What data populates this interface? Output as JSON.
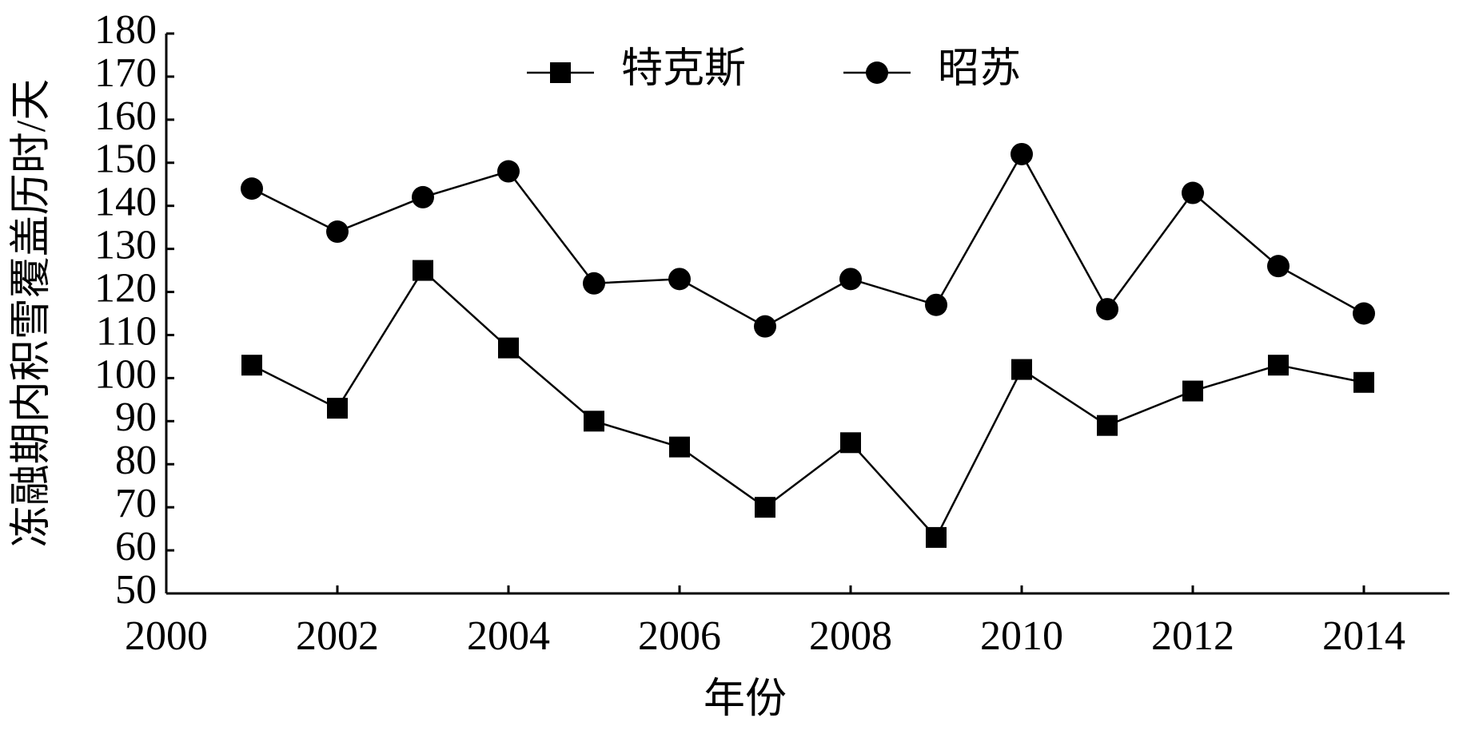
{
  "chart_data": {
    "type": "line",
    "x_label": "年份",
    "y_label": "冻融期内积雪覆盖历时/天",
    "x": [
      2001,
      2002,
      2003,
      2004,
      2005,
      2006,
      2007,
      2008,
      2009,
      2010,
      2011,
      2012,
      2013,
      2014
    ],
    "series": [
      {
        "name": "特克斯",
        "color": "#000000",
        "marker": "square",
        "values": [
          103,
          93,
          125,
          107,
          90,
          84,
          70,
          85,
          63,
          102,
          89,
          97,
          103,
          99
        ]
      },
      {
        "name": "昭苏",
        "color": "#000000",
        "marker": "circle",
        "values": [
          144,
          134,
          142,
          148,
          122,
          123,
          112,
          123,
          117,
          152,
          116,
          143,
          126,
          115
        ]
      }
    ],
    "xlim": [
      2000,
      2015
    ],
    "xticks": [
      2000,
      2002,
      2004,
      2006,
      2008,
      2010,
      2012,
      2014
    ],
    "ylim": [
      50,
      180
    ],
    "yticks": [
      50,
      60,
      70,
      80,
      90,
      100,
      110,
      120,
      130,
      140,
      150,
      160,
      170,
      180
    ],
    "grid": false,
    "legend": "top"
  }
}
